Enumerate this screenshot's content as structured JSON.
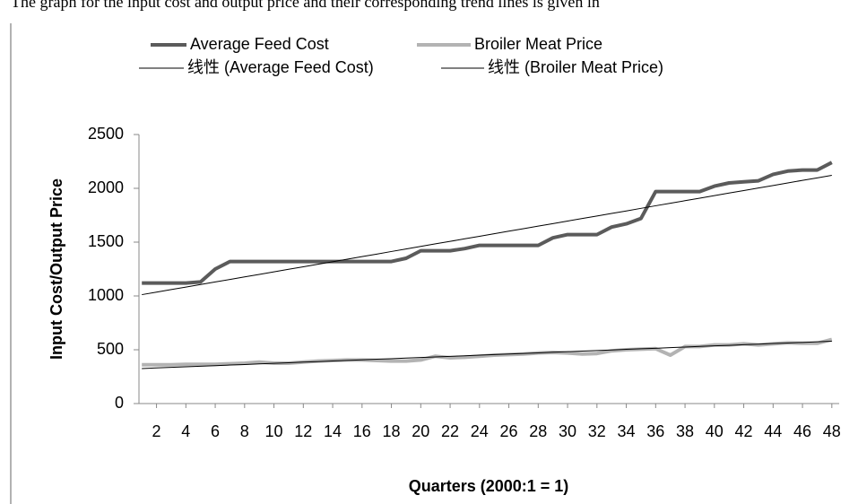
{
  "caption": "The graph for the input cost and output price and their corresponding trend lines is given in",
  "chart_data": {
    "type": "line",
    "x": [
      1,
      2,
      3,
      4,
      5,
      6,
      7,
      8,
      9,
      10,
      11,
      12,
      13,
      14,
      15,
      16,
      17,
      18,
      19,
      20,
      21,
      22,
      23,
      24,
      25,
      26,
      27,
      28,
      29,
      30,
      31,
      32,
      33,
      34,
      35,
      36,
      37,
      38,
      39,
      40,
      41,
      42,
      43,
      44,
      45,
      46,
      47,
      48
    ],
    "xlim": [
      0.5,
      48.5
    ],
    "xticks": [
      2,
      4,
      6,
      8,
      10,
      12,
      14,
      16,
      18,
      20,
      22,
      24,
      26,
      28,
      30,
      32,
      34,
      36,
      38,
      40,
      42,
      44,
      46,
      48
    ],
    "ylim": [
      0,
      2500
    ],
    "yticks": [
      0,
      500,
      1000,
      1500,
      2000,
      2500
    ],
    "x_label": "Quarters (2000:1 = 1)",
    "y_label": "Input Cost/Output Price",
    "series": [
      {
        "name": "Average Feed Cost",
        "color": "#5b5b5b",
        "width": 4,
        "values": [
          1120,
          1120,
          1120,
          1120,
          1130,
          1250,
          1320,
          1320,
          1320,
          1320,
          1320,
          1320,
          1320,
          1320,
          1320,
          1320,
          1320,
          1320,
          1350,
          1420,
          1420,
          1420,
          1440,
          1470,
          1470,
          1470,
          1470,
          1470,
          1540,
          1570,
          1570,
          1570,
          1640,
          1670,
          1720,
          1970,
          1970,
          1970,
          1970,
          2020,
          2050,
          2060,
          2070,
          2130,
          2160,
          2170,
          2170,
          2240
        ]
      },
      {
        "name": "Broiler Meat Price",
        "color": "#b3b3b3",
        "width": 4,
        "values": [
          360,
          360,
          360,
          365,
          365,
          365,
          370,
          375,
          385,
          375,
          375,
          385,
          395,
          400,
          405,
          405,
          400,
          395,
          395,
          405,
          440,
          425,
          430,
          440,
          450,
          455,
          460,
          470,
          475,
          470,
          460,
          465,
          490,
          500,
          505,
          510,
          450,
          530,
          530,
          545,
          545,
          555,
          545,
          555,
          565,
          560,
          560,
          595
        ]
      },
      {
        "name": "线性 (Average Feed Cost)",
        "color": "#000000",
        "width": 1,
        "values": [
          1012,
          1035,
          1059,
          1082,
          1106,
          1130,
          1153,
          1177,
          1200,
          1224,
          1248,
          1271,
          1295,
          1318,
          1342,
          1366,
          1389,
          1413,
          1436,
          1460,
          1484,
          1507,
          1531,
          1554,
          1578,
          1602,
          1625,
          1649,
          1672,
          1696,
          1720,
          1743,
          1767,
          1790,
          1814,
          1838,
          1861,
          1885,
          1908,
          1932,
          1956,
          1979,
          2003,
          2026,
          2050,
          2074,
          2097,
          2121
        ]
      },
      {
        "name": "线性 (Broiler Meat Price)",
        "color": "#000000",
        "width": 1,
        "values": [
          325,
          331,
          336,
          342,
          347,
          352,
          358,
          363,
          369,
          374,
          379,
          385,
          390,
          396,
          401,
          406,
          412,
          417,
          423,
          428,
          433,
          439,
          444,
          450,
          455,
          460,
          466,
          471,
          477,
          482,
          487,
          493,
          498,
          504,
          509,
          514,
          520,
          525,
          531,
          536,
          541,
          547,
          552,
          558,
          563,
          568,
          574,
          579
        ]
      }
    ]
  }
}
